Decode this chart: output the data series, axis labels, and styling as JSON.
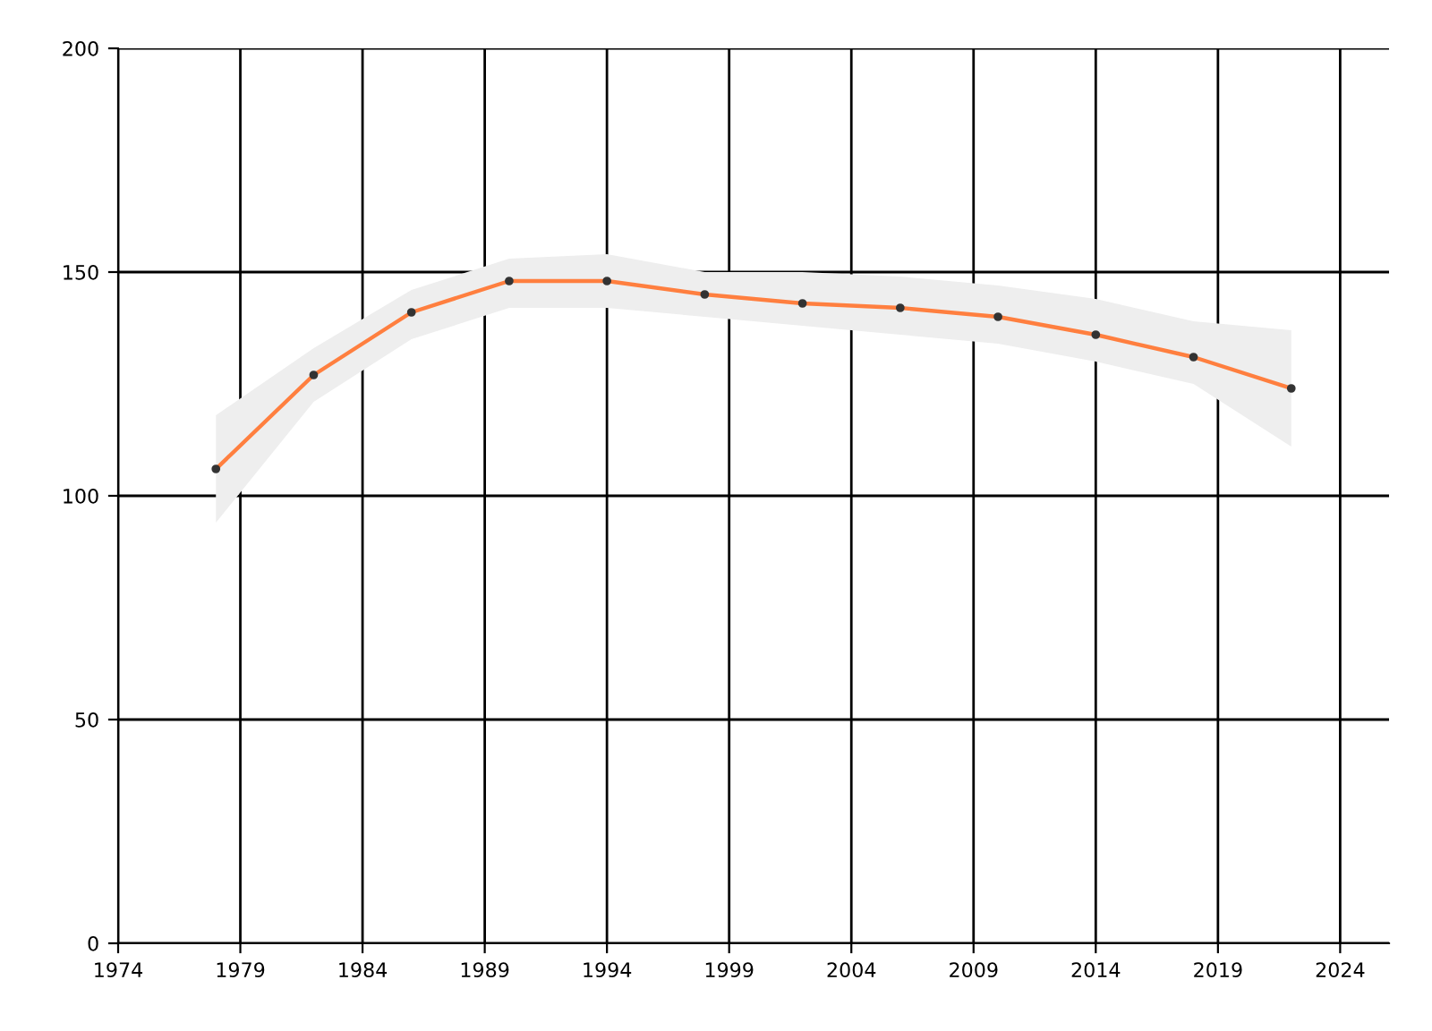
{
  "chart_data": {
    "type": "line",
    "x": [
      1978,
      1982,
      1986,
      1990,
      1994,
      1998,
      2002,
      2006,
      2010,
      2014,
      2018,
      2022
    ],
    "series": [
      {
        "color": "#ff7f3f",
        "values": [
          106,
          127,
          141,
          148,
          148,
          145,
          143,
          142,
          140,
          136,
          131,
          124
        ],
        "lower": [
          94,
          121,
          135,
          142,
          142,
          140,
          138,
          136,
          134,
          130,
          125,
          111
        ],
        "upper": [
          118,
          133,
          146,
          153,
          154,
          150,
          150,
          149,
          147,
          144,
          139,
          137
        ]
      }
    ],
    "xlim": [
      1974,
      2026
    ],
    "xticks": [
      1974,
      1979,
      1984,
      1989,
      1994,
      1999,
      2004,
      2009,
      2014,
      2019,
      2024
    ],
    "ylim": [
      0,
      200
    ],
    "yticks": [
      0,
      50,
      100,
      150,
      200
    ],
    "grid": true,
    "marker": "circle",
    "line_style": "solid"
  }
}
